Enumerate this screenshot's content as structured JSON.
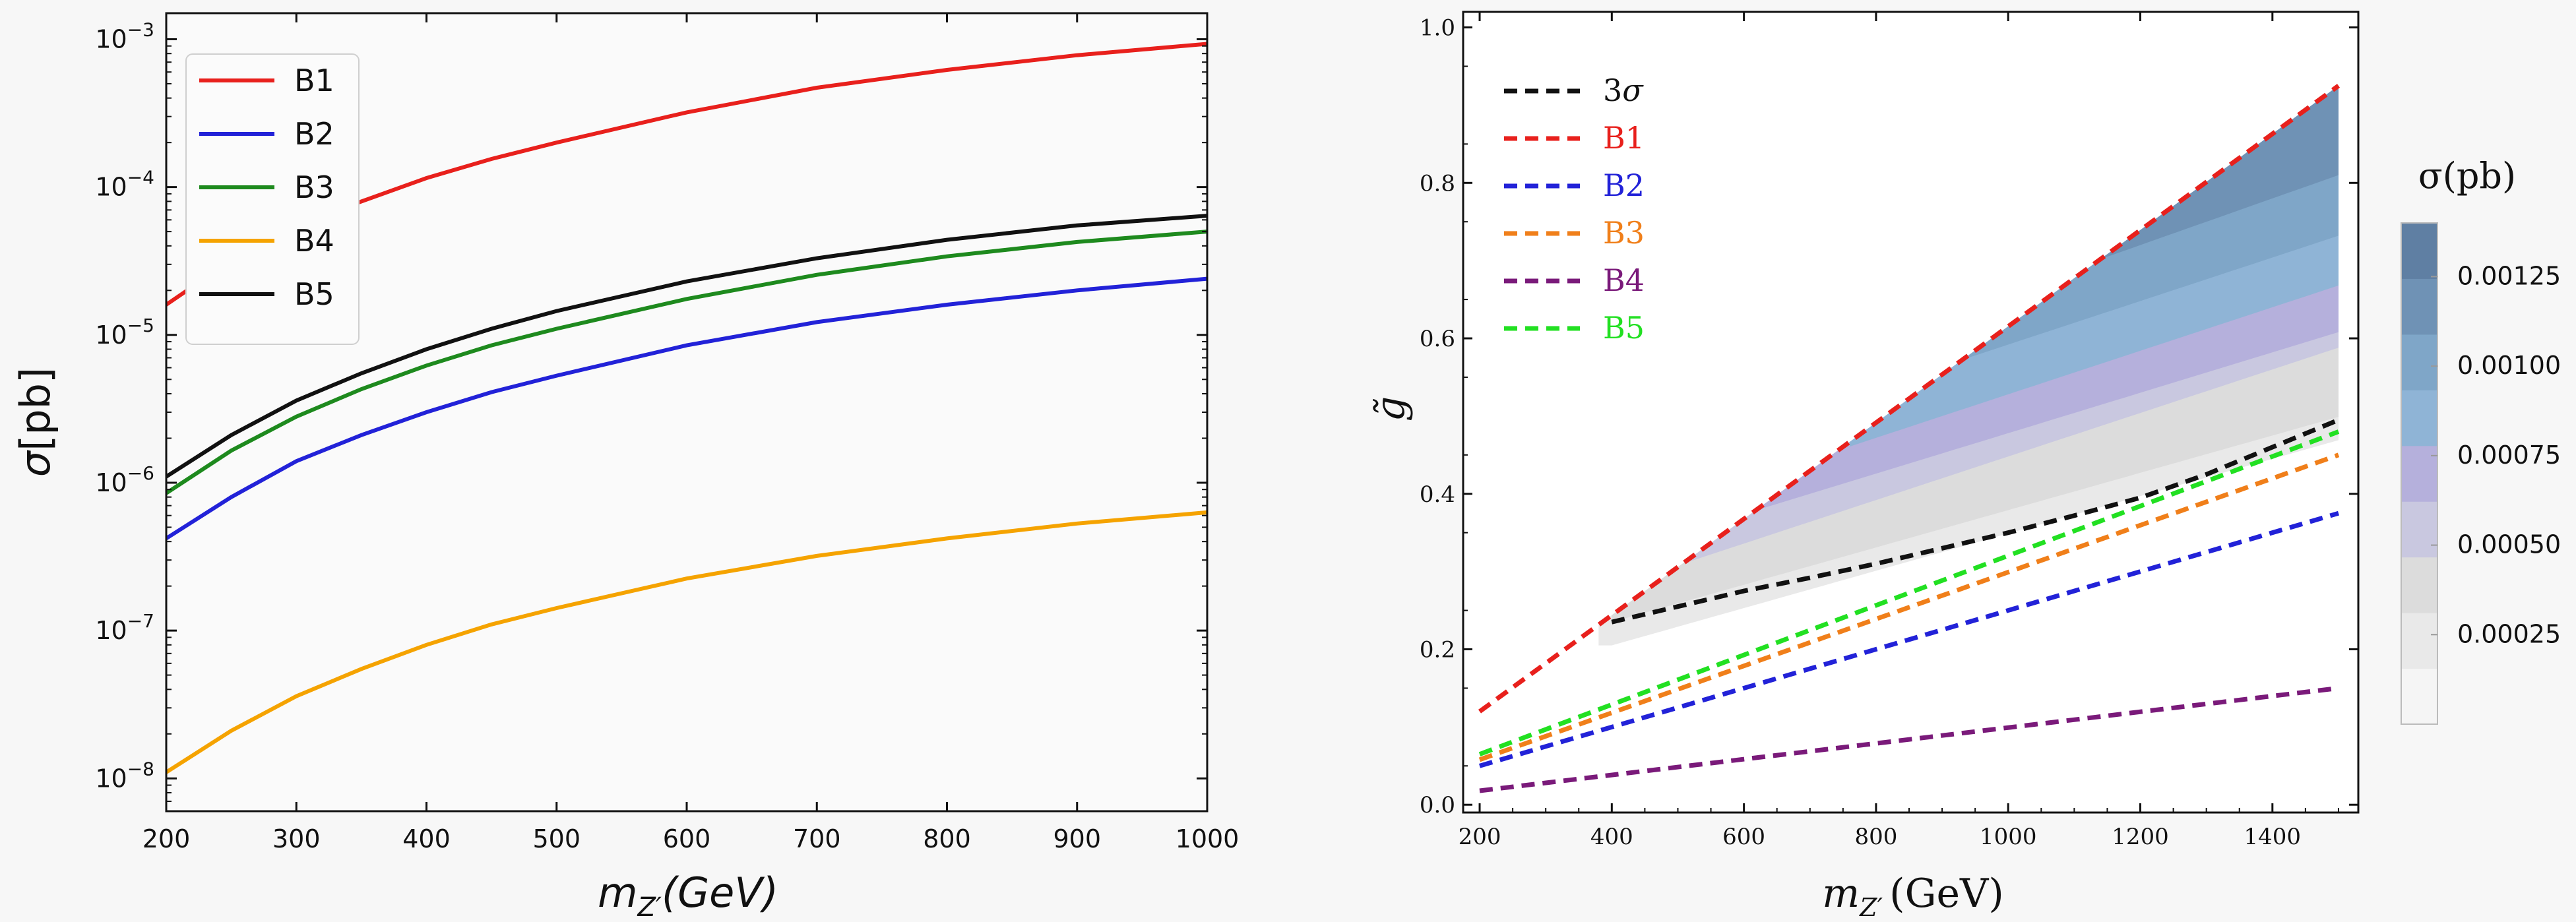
{
  "chart_data": [
    {
      "type": "line",
      "xlabel": "m_Z'(GeV)",
      "xlabel_main": "m",
      "xlabel_sub": "Z′",
      "xlabel_unit": "(GeV)",
      "ylabel": "σ[pb]",
      "ylabel_sym": "σ",
      "ylabel_unit": "[pb]",
      "yscale": "log",
      "xlim": [
        200,
        1000
      ],
      "ylim": [
        6e-09,
        0.0015
      ],
      "xticks": [
        200,
        300,
        400,
        500,
        600,
        700,
        800,
        900,
        1000
      ],
      "yticks": [
        {
          "value": 1e-08,
          "base": "10",
          "exp": "−8"
        },
        {
          "value": 1e-07,
          "base": "10",
          "exp": "−7"
        },
        {
          "value": 1e-06,
          "base": "10",
          "exp": "−6"
        },
        {
          "value": 1e-05,
          "base": "10",
          "exp": "−5"
        },
        {
          "value": 0.0001,
          "base": "10",
          "exp": "−4"
        },
        {
          "value": 0.001,
          "base": "10",
          "exp": "−3"
        }
      ],
      "legend_position": "top-left",
      "x": [
        200,
        250,
        300,
        350,
        400,
        450,
        500,
        600,
        700,
        800,
        900,
        1000
      ],
      "series": [
        {
          "name": "B1",
          "color": "#e8201c",
          "values": [
            1.6e-05,
            3.2e-05,
            5.5e-05,
            8e-05,
            0.000115,
            0.000155,
            0.0002,
            0.00032,
            0.00047,
            0.00062,
            0.00078,
            0.00093
          ]
        },
        {
          "name": "B2",
          "color": "#2222d8",
          "values": [
            4.2e-07,
            8e-07,
            1.4e-06,
            2.1e-06,
            3e-06,
            4.1e-06,
            5.3e-06,
            8.5e-06,
            1.22e-05,
            1.6e-05,
            2e-05,
            2.4e-05
          ]
        },
        {
          "name": "B3",
          "color": "#1e8a1e",
          "values": [
            8.5e-07,
            1.65e-06,
            2.8e-06,
            4.3e-06,
            6.2e-06,
            8.5e-06,
            1.1e-05,
            1.75e-05,
            2.55e-05,
            3.4e-05,
            4.25e-05,
            5e-05
          ]
        },
        {
          "name": "B4",
          "color": "#f5a300",
          "values": [
            1.1e-08,
            2.1e-08,
            3.6e-08,
            5.5e-08,
            8e-08,
            1.1e-07,
            1.42e-07,
            2.25e-07,
            3.2e-07,
            4.2e-07,
            5.3e-07,
            6.3e-07
          ]
        },
        {
          "name": "B5",
          "color": "#111111",
          "values": [
            1.1e-06,
            2.1e-06,
            3.6e-06,
            5.5e-06,
            8e-06,
            1.1e-05,
            1.45e-05,
            2.3e-05,
            3.3e-05,
            4.4e-05,
            5.5e-05,
            6.4e-05
          ]
        }
      ]
    },
    {
      "type": "heatmap",
      "xlabel": "m_Z' (GeV)",
      "xlabel_main": "m",
      "xlabel_sub": "Z′",
      "xlabel_unit": "(GeV)",
      "ylabel": "g̃",
      "xlim": [
        175,
        1530
      ],
      "ylim": [
        -0.01,
        1.02
      ],
      "xticks": [
        200,
        400,
        600,
        800,
        1000,
        1200,
        1400
      ],
      "yticks": [
        "0.0",
        "0.2",
        "0.4",
        "0.6",
        "0.8",
        "1.0"
      ],
      "legend_position": "top-left",
      "colorbar": {
        "title": "σ(pb)",
        "ticks": [
          "0.00025",
          "0.00050",
          "0.00075",
          "0.00100",
          "0.00125"
        ],
        "range": [
          0,
          0.0014
        ],
        "bands": [
          "#f5f5f5",
          "#e9e9e9",
          "#dcdcdc",
          "#c9c8e0",
          "#b5b0dc",
          "#8fb4d6",
          "#7fa6c8",
          "#6f92b5",
          "#5f7fa3"
        ]
      },
      "region": {
        "description_level_by_band": [
          8e-05,
          0.00022,
          0.0004,
          0.00062,
          0.00085,
          0.0011,
          0.0013
        ],
        "upper_boundary": {
          "x": [
            200,
            1500
          ],
          "y": [
            0.12,
            0.925
          ]
        }
      },
      "series": [
        {
          "name": "3σ",
          "color": "#111111",
          "x": [
            400,
            500,
            600,
            700,
            800,
            900,
            1000,
            1100,
            1200,
            1300,
            1400,
            1500
          ],
          "y": [
            0.235,
            0.255,
            0.275,
            0.292,
            0.31,
            0.33,
            0.35,
            0.372,
            0.395,
            0.425,
            0.46,
            0.495
          ]
        },
        {
          "name": "B1",
          "color": "#e8201c",
          "x": [
            200,
            1500
          ],
          "y": [
            0.12,
            0.925
          ]
        },
        {
          "name": "B2",
          "color": "#2222d8",
          "x": [
            200,
            1500
          ],
          "y": [
            0.05,
            0.375
          ]
        },
        {
          "name": "B3",
          "color": "#f07f1a",
          "x": [
            200,
            1500
          ],
          "y": [
            0.058,
            0.45
          ]
        },
        {
          "name": "B4",
          "color": "#7a1a7a",
          "x": [
            200,
            1500
          ],
          "y": [
            0.018,
            0.15
          ]
        },
        {
          "name": "B5",
          "color": "#22e022",
          "x": [
            200,
            1500
          ],
          "y": [
            0.065,
            0.48
          ]
        }
      ]
    }
  ]
}
